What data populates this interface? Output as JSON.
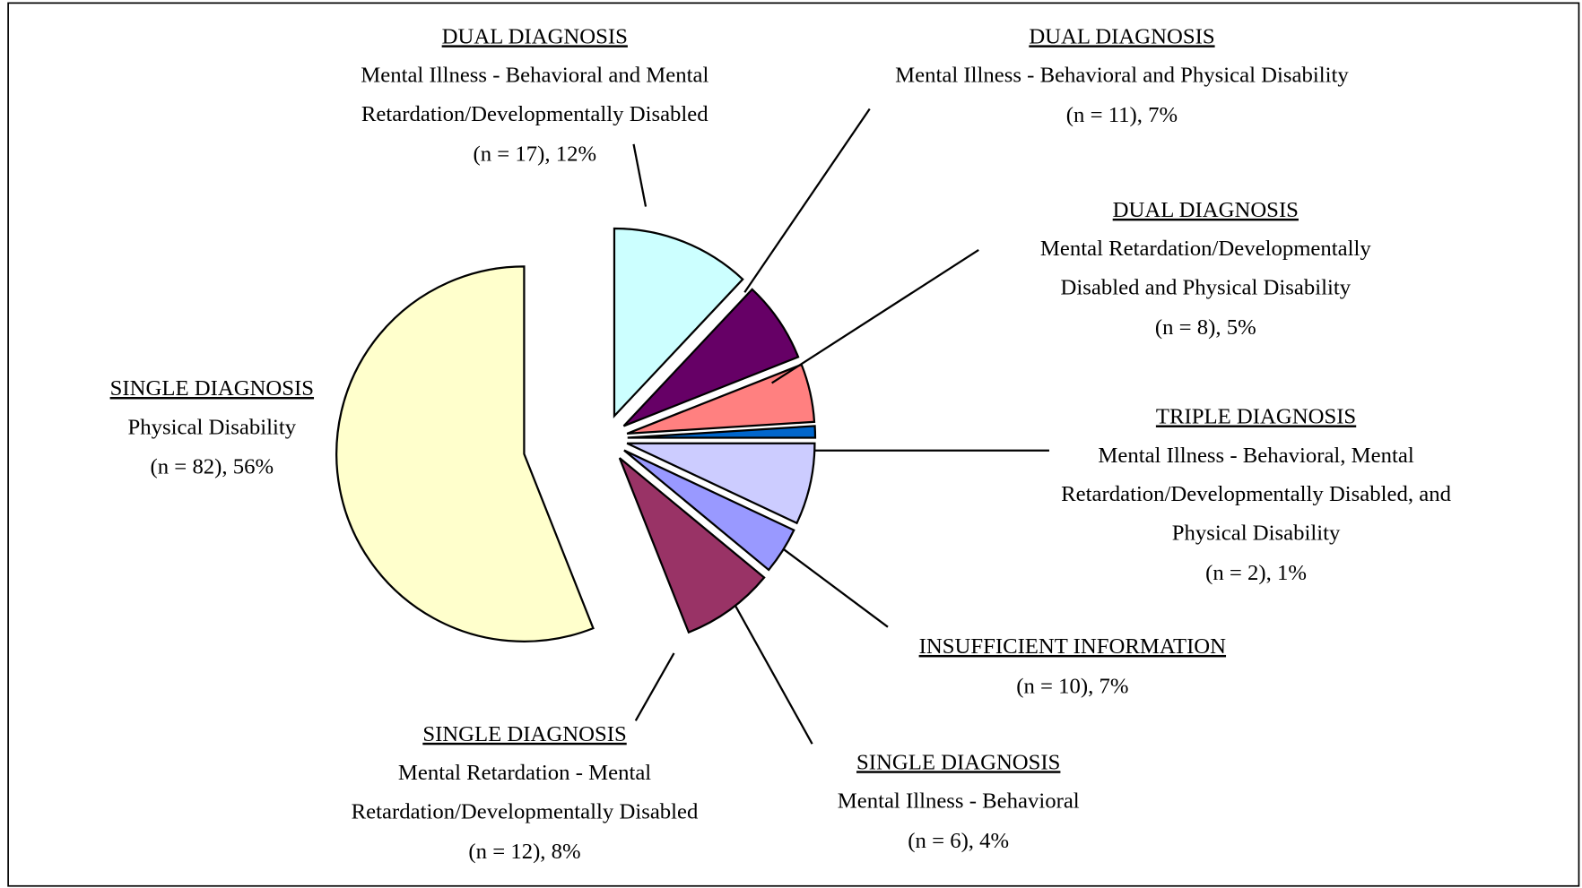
{
  "chart_data": {
    "type": "pie",
    "categories": [
      "DUAL DIAGNOSIS",
      "DUAL DIAGNOSIS",
      "DUAL DIAGNOSIS",
      "TRIPLE DIAGNOSIS",
      "INSUFFICIENT INFORMATION",
      "SINGLE DIAGNOSIS",
      "SINGLE DIAGNOSIS",
      "SINGLE DIAGNOSIS"
    ],
    "descriptions": [
      [
        "Mental Illness - Behavioral and Mental",
        "Retardation/Developmentally Disabled"
      ],
      [
        "Mental Illness - Behavioral and Physical Disability"
      ],
      [
        "Mental Retardation/Developmentally",
        "Disabled and Physical Disability"
      ],
      [
        "Mental Illness - Behavioral, Mental",
        "Retardation/Developmentally Disabled, and",
        "Physical Disability"
      ],
      [],
      [
        "Mental Illness - Behavioral"
      ],
      [
        "Mental Retardation - Mental",
        "Retardation/Developmentally Disabled"
      ],
      [
        "Physical Disability"
      ]
    ],
    "values": [
      12,
      7,
      5,
      1,
      7,
      4,
      8,
      56
    ],
    "value_labels": [
      "(n = 17), 12%",
      "(n = 11), 7%",
      "(n = 8), 5%",
      "(n = 2), 1%",
      "(n = 10), 7%",
      "(n = 6), 4%",
      "(n = 12), 8%",
      "(n = 82), 56%"
    ],
    "colors": [
      "#ccffff",
      "#660066",
      "#ff8080",
      "#0066cc",
      "#ccccff",
      "#9999ff",
      "#993366",
      "#ffffcc"
    ]
  }
}
